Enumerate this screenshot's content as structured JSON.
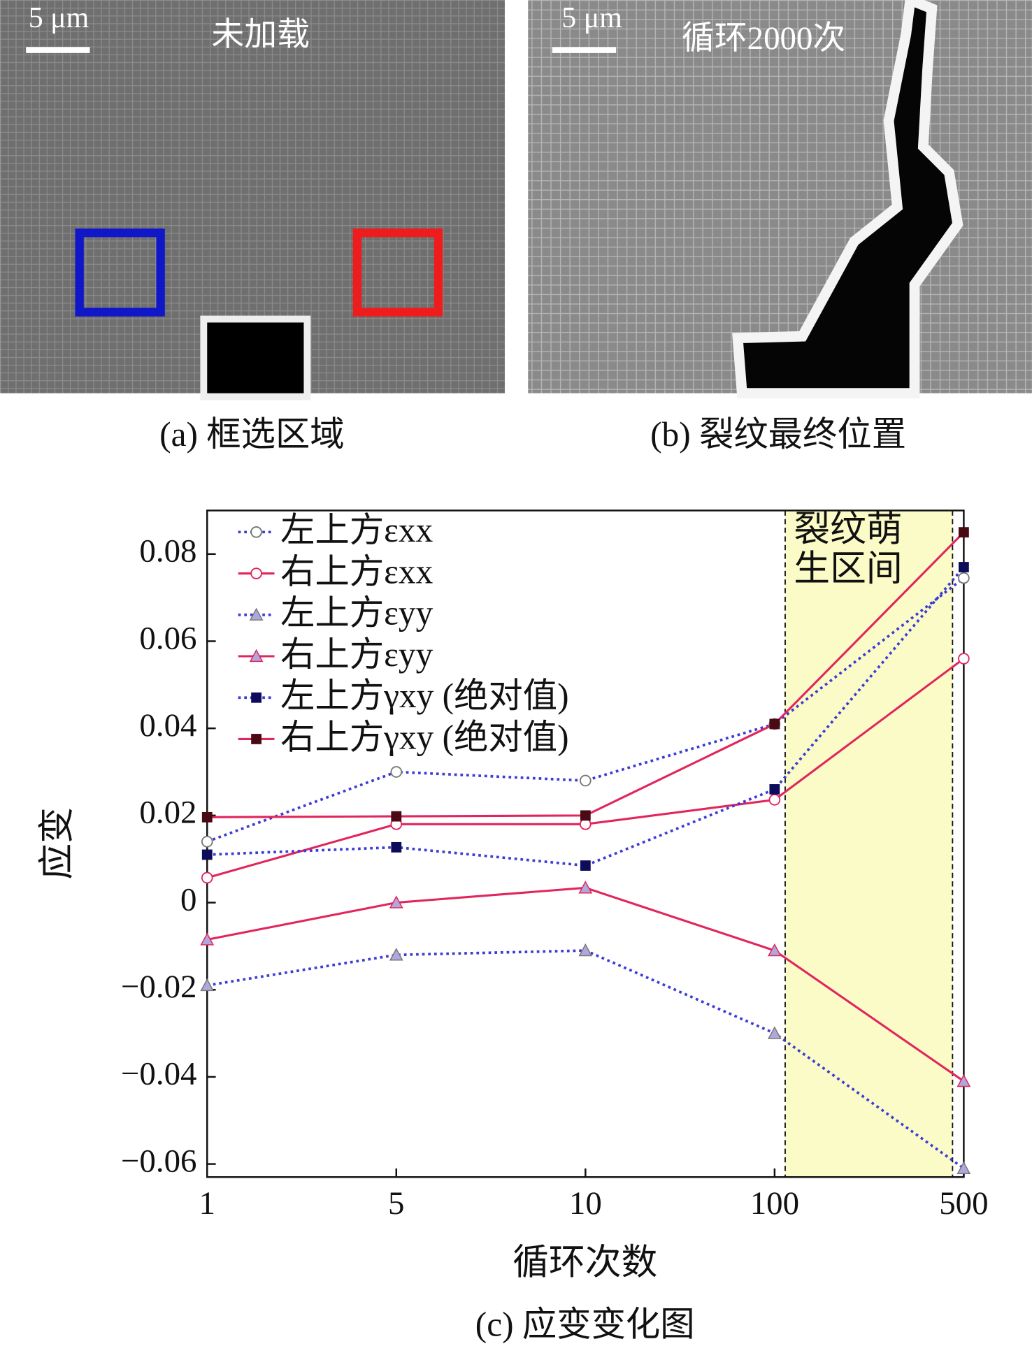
{
  "panels": [
    {
      "scale": "5 μm",
      "label": "未加载",
      "caption": "(a) 框选区域"
    },
    {
      "scale": "5 μm",
      "label": "循环2000次",
      "caption": "(b) 裂纹最终位置"
    }
  ],
  "chart_data": {
    "type": "line",
    "caption": "(c) 应变变化图",
    "xlabel": "循环次数",
    "ylabel": "应变",
    "categories": [
      "1",
      "5",
      "10",
      "100",
      "500"
    ],
    "ylim": [
      -0.063,
      0.09
    ],
    "yticks": [
      {
        "value": -0.06,
        "label": "−0.06"
      },
      {
        "value": -0.04,
        "label": "−0.04"
      },
      {
        "value": -0.02,
        "label": "−0.02"
      },
      0,
      0.02,
      0.04,
      0.06,
      0.08
    ],
    "legend": "upper left",
    "annotation": "裂纹萌生区间",
    "series": [
      {
        "name": "左上方εxx",
        "color": "#3b3bd6",
        "dash": "dotted",
        "marker": "open-circle",
        "values": [
          0.014,
          0.03,
          0.028,
          0.041,
          0.0745
        ]
      },
      {
        "name": "右上方εxx",
        "color": "#e2255c",
        "dash": "solid",
        "marker": "open-circle",
        "values": [
          0.0057,
          0.018,
          0.018,
          0.0236,
          0.056
        ]
      },
      {
        "name": "左上方εyy",
        "color": "#3b3bd6",
        "dash": "dotted",
        "marker": "triangle",
        "values": [
          -0.019,
          -0.012,
          -0.011,
          -0.03,
          -0.061
        ]
      },
      {
        "name": "右上方εyy",
        "color": "#e2255c",
        "dash": "solid",
        "marker": "triangle",
        "values": [
          -0.0085,
          0,
          0.0034,
          -0.011,
          -0.041
        ]
      },
      {
        "name": "左上方γxy (绝对值)",
        "color": "#3b3bd6",
        "dash": "dotted",
        "marker": "square",
        "values": [
          0.011,
          0.0127,
          0.0085,
          0.026,
          0.077
        ]
      },
      {
        "name": "右上方γxy (绝对值)",
        "color": "#e2255c",
        "dash": "solid",
        "marker": "square",
        "values": [
          0.0196,
          0.0198,
          0.02,
          0.041,
          0.085
        ]
      }
    ]
  }
}
